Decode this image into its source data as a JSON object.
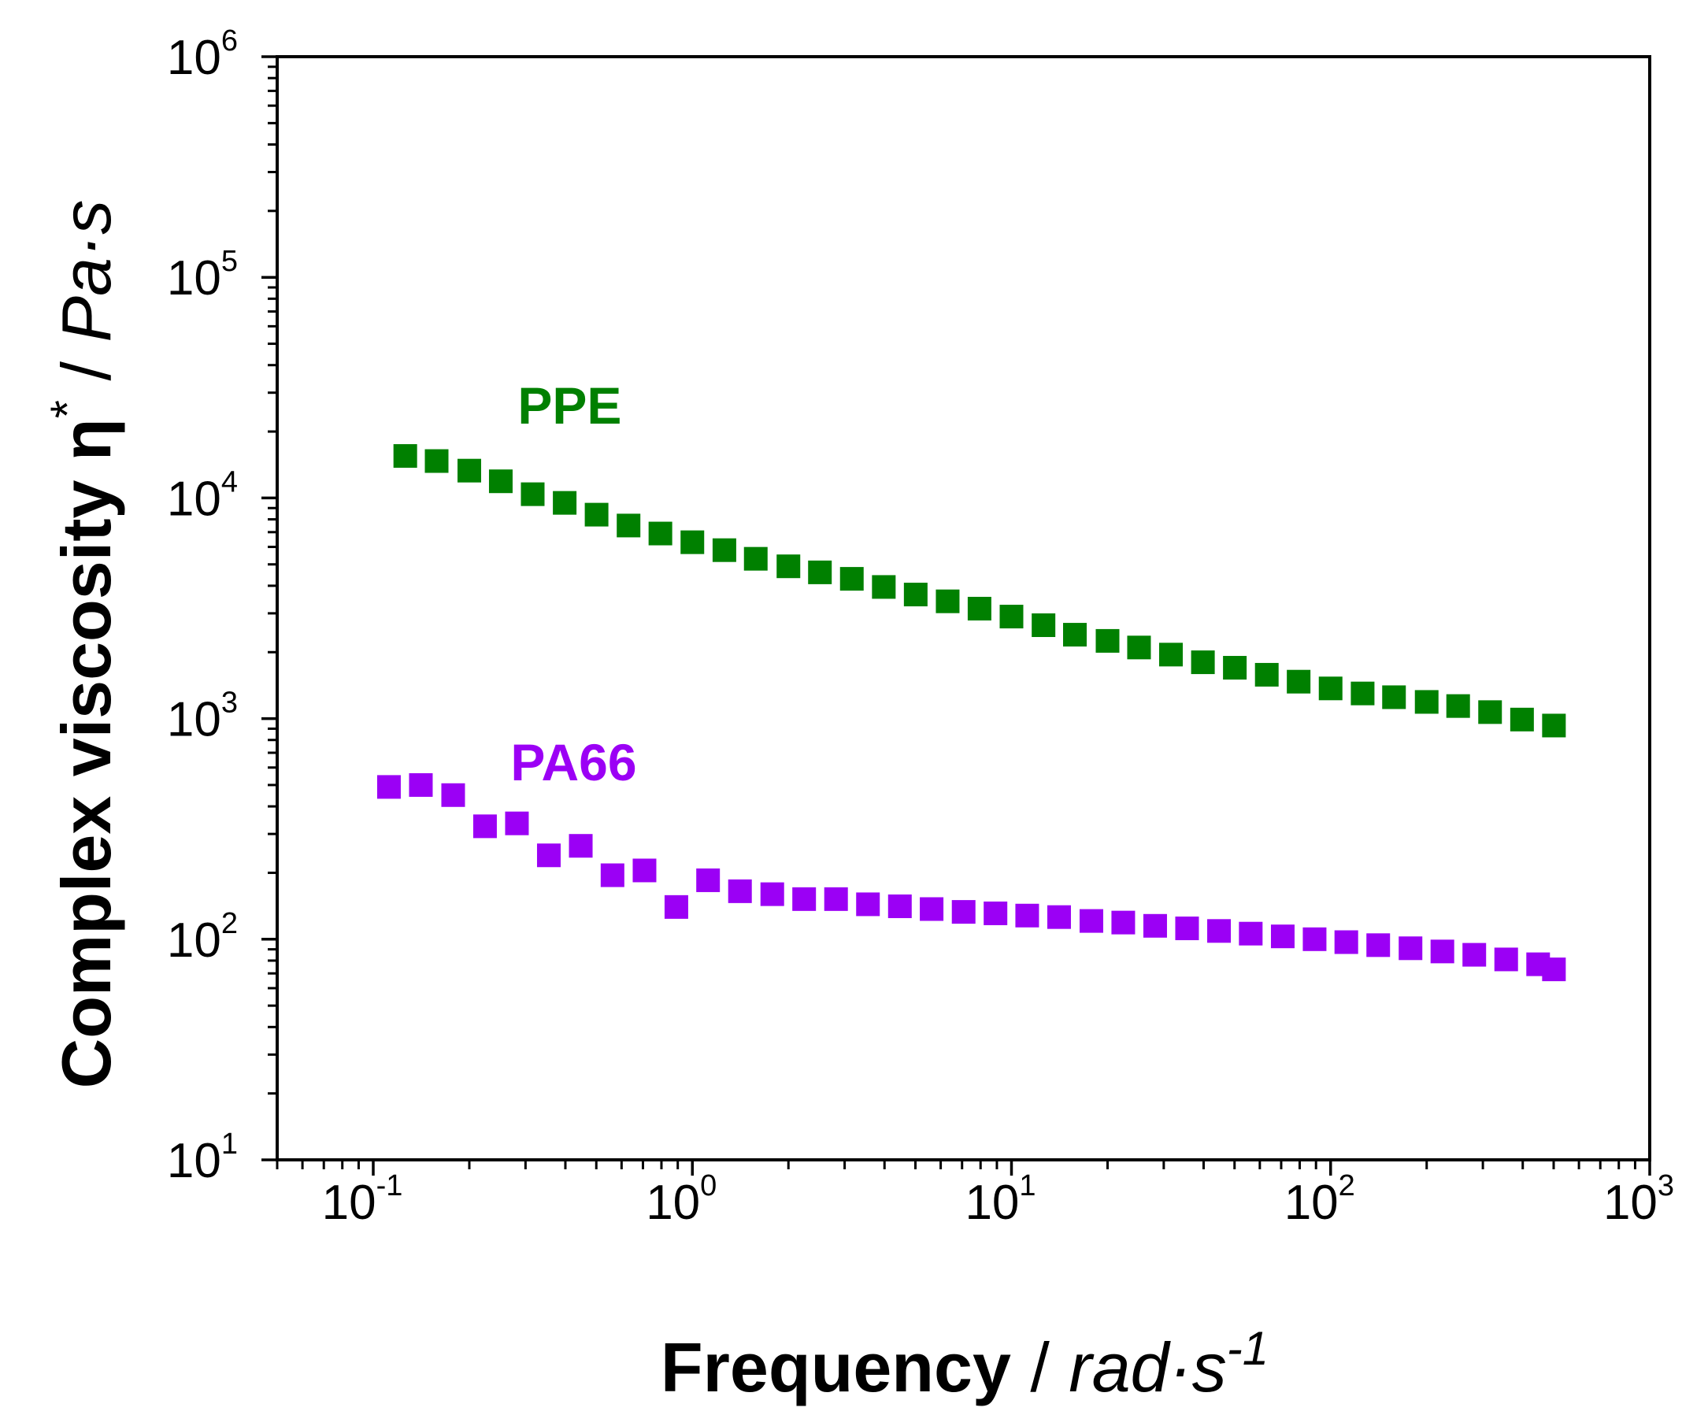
{
  "chart_data": {
    "type": "scatter",
    "title": "",
    "x_scale": "log",
    "y_scale": "log",
    "xlim": [
      0.05,
      1000
    ],
    "ylim": [
      10,
      1000000
    ],
    "x_ticks": [
      {
        "value": 0.1,
        "base": "10",
        "exp": "-1"
      },
      {
        "value": 1,
        "base": "10",
        "exp": "0"
      },
      {
        "value": 10,
        "base": "10",
        "exp": "1"
      },
      {
        "value": 100,
        "base": "10",
        "exp": "2"
      },
      {
        "value": 1000,
        "base": "10",
        "exp": "3"
      }
    ],
    "y_ticks": [
      {
        "value": 10,
        "base": "10",
        "exp": "1"
      },
      {
        "value": 100,
        "base": "10",
        "exp": "2"
      },
      {
        "value": 1000,
        "base": "10",
        "exp": "3"
      },
      {
        "value": 10000,
        "base": "10",
        "exp": "4"
      },
      {
        "value": 100000,
        "base": "10",
        "exp": "5"
      },
      {
        "value": 1000000,
        "base": "10",
        "exp": "6"
      }
    ],
    "xlabel": {
      "bold": "Frequency",
      "sep": " / ",
      "unit": "rad·s",
      "sup": "-1"
    },
    "ylabel": {
      "bold": "Complex viscosity η",
      "sup": "*",
      "sep": " / ",
      "unit": "Pa·s"
    },
    "grid": false,
    "series": [
      {
        "name": "PPE",
        "color": "#008000",
        "marker": "square",
        "x": [
          0.126,
          0.158,
          0.2,
          0.251,
          0.316,
          0.398,
          0.501,
          0.631,
          0.794,
          1.0,
          1.26,
          1.58,
          2.0,
          2.51,
          3.16,
          3.98,
          5.01,
          6.31,
          7.94,
          10.0,
          12.6,
          15.8,
          20.0,
          25.1,
          31.6,
          39.8,
          50.1,
          63.1,
          79.4,
          100,
          126,
          158,
          200,
          251,
          316,
          398,
          501
        ],
        "values": [
          15500,
          14700,
          13300,
          11900,
          10400,
          9500,
          8400,
          7500,
          6900,
          6300,
          5800,
          5300,
          4900,
          4600,
          4300,
          3950,
          3650,
          3400,
          3150,
          2900,
          2650,
          2400,
          2250,
          2100,
          1950,
          1800,
          1700,
          1580,
          1470,
          1370,
          1300,
          1250,
          1190,
          1140,
          1070,
          990,
          930
        ]
      },
      {
        "name": "PA66",
        "color": "#9b00f5",
        "marker": "square",
        "x": [
          0.112,
          0.141,
          0.178,
          0.224,
          0.282,
          0.355,
          0.447,
          0.562,
          0.708,
          0.891,
          1.12,
          1.41,
          1.78,
          2.24,
          2.82,
          3.55,
          4.47,
          5.62,
          7.08,
          8.91,
          11.2,
          14.1,
          17.8,
          22.4,
          28.2,
          35.5,
          44.7,
          56.2,
          70.8,
          89.1,
          112,
          141,
          178,
          224,
          282,
          355,
          447,
          501
        ],
        "values": [
          490,
          500,
          450,
          325,
          335,
          240,
          265,
          195,
          205,
          140,
          185,
          165,
          160,
          152,
          152,
          144,
          141,
          137,
          133,
          131,
          128,
          126,
          121,
          119,
          115,
          112,
          109,
          106,
          103,
          100,
          97,
          94,
          91,
          88,
          85,
          81,
          77,
          73
        ]
      }
    ],
    "annotations": [
      {
        "text": "PPE",
        "series": "PPE",
        "x": 0.3,
        "y": 20000
      },
      {
        "text": "PA66",
        "series": "PA66",
        "x": 0.3,
        "y": 650
      }
    ]
  }
}
